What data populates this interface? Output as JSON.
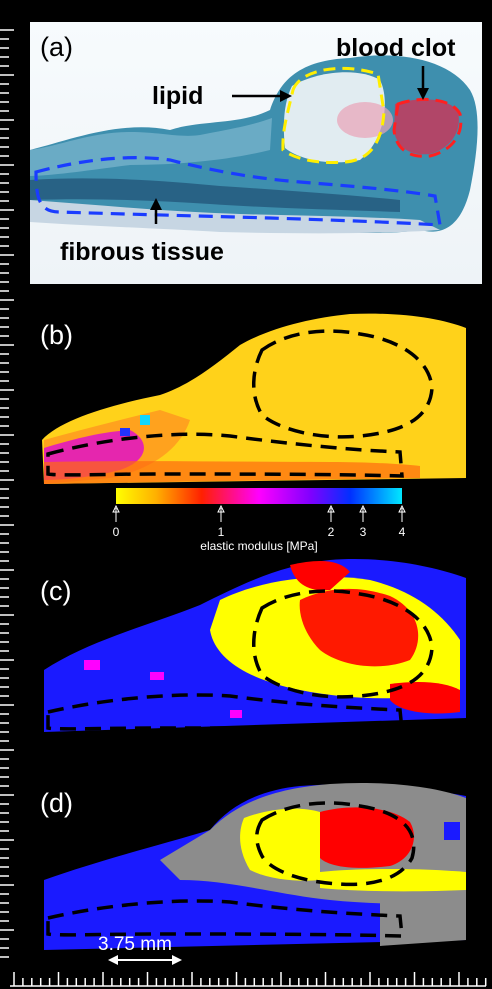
{
  "panels": {
    "a": {
      "label": "(a)",
      "annotations": {
        "lipid": "lipid",
        "blood_clot": "blood clot",
        "fibrous_tissue": "fibrous tissue"
      }
    },
    "b": {
      "label": "(b)"
    },
    "c": {
      "label": "(c)"
    },
    "d": {
      "label": "(d)"
    }
  },
  "colorbar": {
    "title": "elastic modulus [MPa]",
    "ticks": [
      "0",
      "1",
      "2",
      "3",
      "4"
    ],
    "colors": [
      "#ffff00",
      "#ff9900",
      "#ff0000",
      "#ff00ff",
      "#8800ff",
      "#0000ff",
      "#00ddff"
    ]
  },
  "scale_bar": {
    "label": "3.75 mm"
  },
  "colors": {
    "background": "#000000",
    "outline_lipid": "#ffee00",
    "outline_clot": "#ff2020",
    "outline_fibrous": "#1a3cff",
    "region_yellow": "#ffff00",
    "region_red": "#ff0000",
    "region_blue": "#1a1aff",
    "region_gray": "#8c8c8c",
    "region_magenta": "#ff00ff"
  }
}
